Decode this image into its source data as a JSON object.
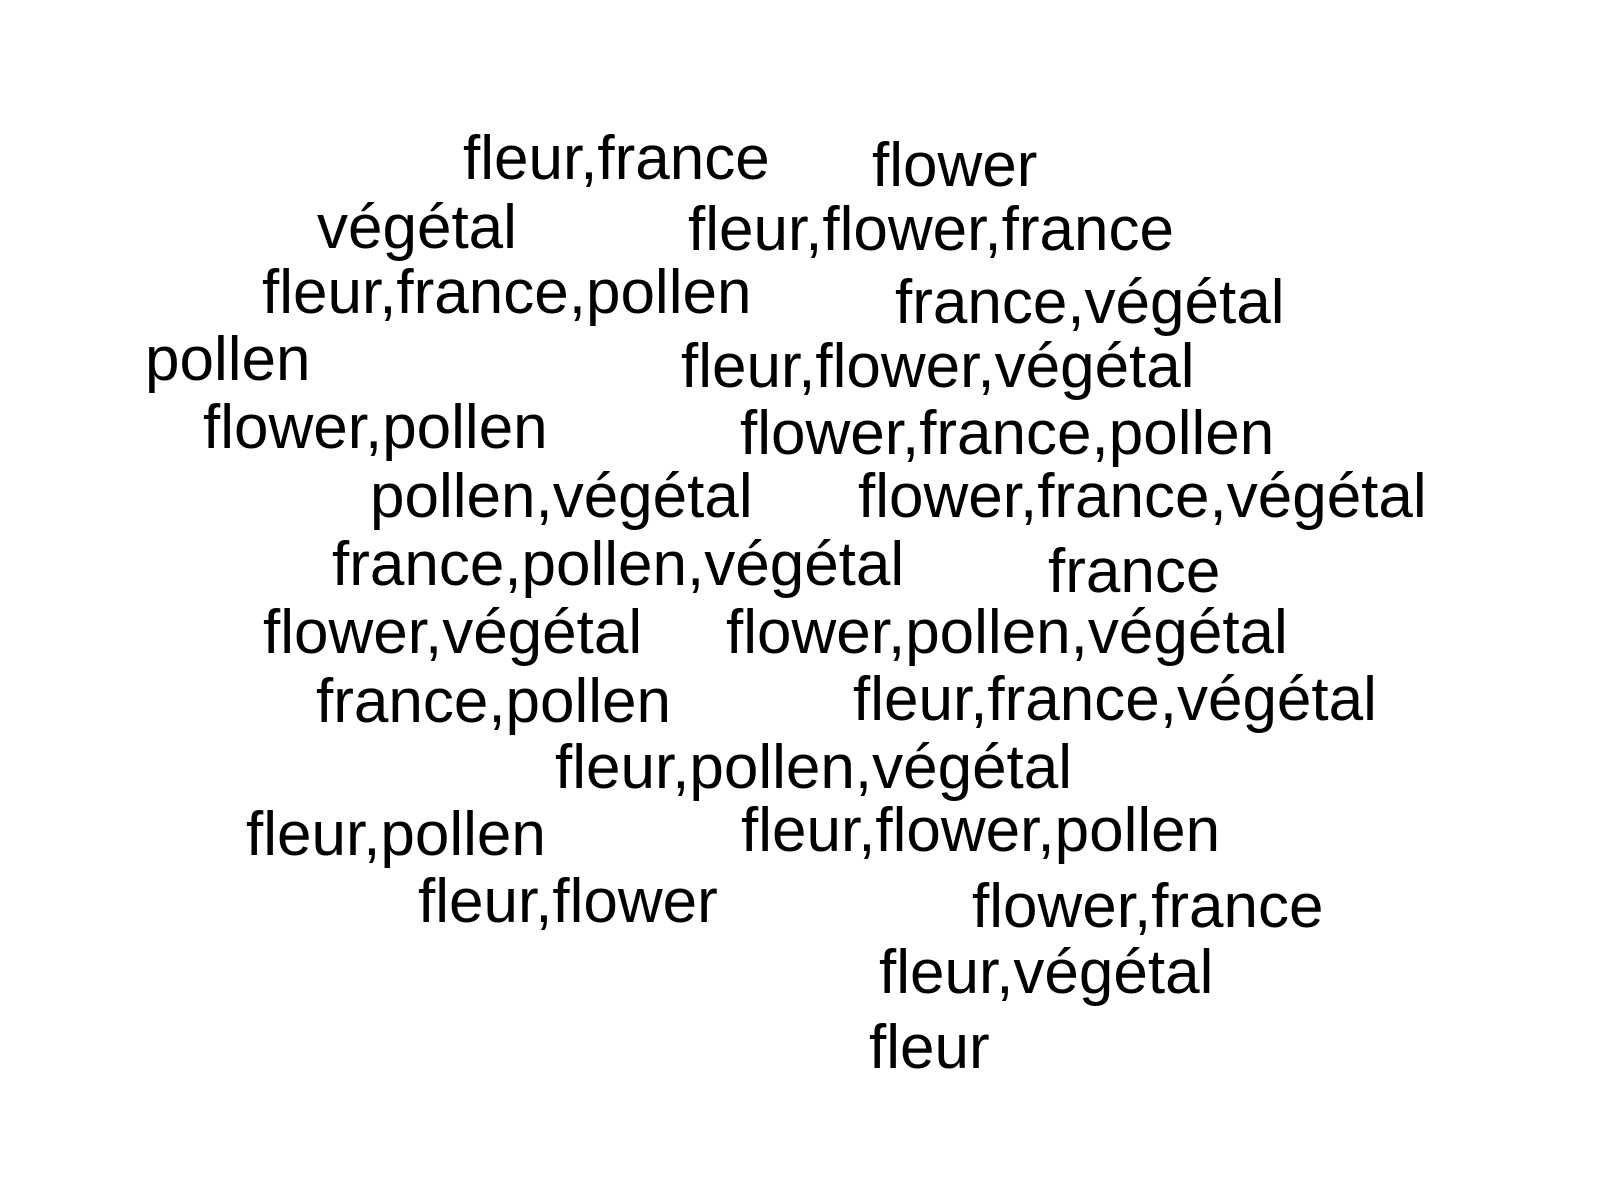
{
  "words": [
    "fleur,france",
    "flower",
    "végétal",
    "fleur,flower,france",
    "fleur,france,pollen",
    "france,végétal",
    "pollen",
    "fleur,flower,végétal",
    "flower,pollen",
    "flower,france,pollen",
    "pollen,végétal",
    "flower,france,végétal",
    "france,pollen,végétal",
    "france",
    "flower,végétal",
    "flower,pollen,végétal",
    "france,pollen",
    "fleur,france,végétal",
    "fleur,pollen,végétal",
    "fleur,pollen",
    "fleur,flower,pollen",
    "fleur,flower",
    "flower,france",
    "fleur,végétal",
    "fleur"
  ],
  "colors": {
    "background": "#ffffff",
    "text": "#000000"
  }
}
